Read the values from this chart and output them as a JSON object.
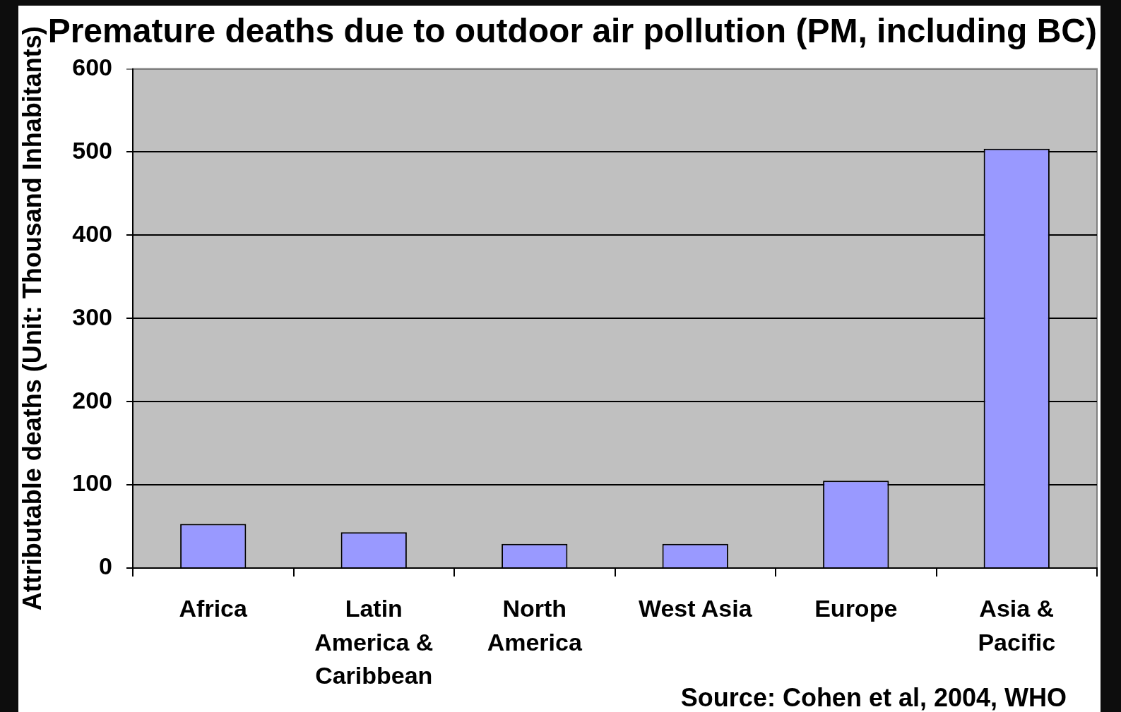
{
  "chart_data": {
    "type": "bar",
    "title": "Premature deaths due to outdoor air pollution (PM, including BC)",
    "ylabel": "Attributable deaths (Unit: Thousand Inhabitants)",
    "categories": [
      "Africa",
      "Latin America & Caribbean",
      "North America",
      "West Asia",
      "Europe",
      "Asia & Pacific"
    ],
    "values": [
      53,
      43,
      29,
      29,
      105,
      504
    ],
    "color": "#9999ff",
    "ylim": [
      0,
      600
    ],
    "yticks": [
      0,
      100,
      200,
      300,
      400,
      500,
      600
    ],
    "grid": "y",
    "legend": false,
    "annotations": [
      "Source: Cohen et al, 2004, WHO"
    ]
  }
}
